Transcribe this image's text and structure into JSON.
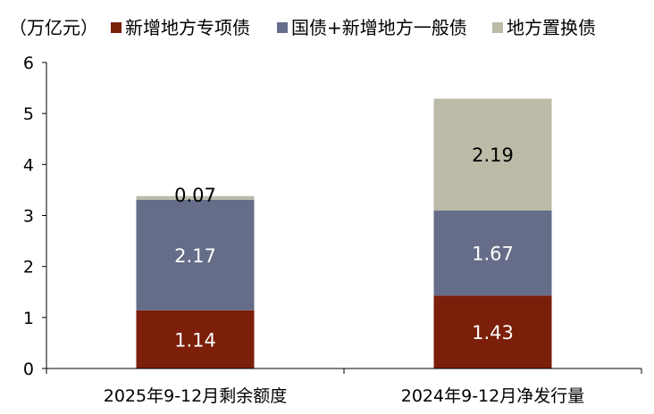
{
  "chart_data": {
    "type": "bar",
    "stacked": true,
    "unit_label": "（万亿元）",
    "categories": [
      "2025年9-12月剩余额度",
      "2024年9-12月净发行量"
    ],
    "series": [
      {
        "name": "新增地方专项债",
        "color": "#7b1e0a",
        "label_color": "#ffffff",
        "values": [
          1.14,
          1.43
        ]
      },
      {
        "name": "国债+新增地方一般债",
        "color": "#656d88",
        "label_color": "#ffffff",
        "values": [
          2.17,
          1.67
        ]
      },
      {
        "name": "地方置换债",
        "color": "#bcbba8",
        "label_color": "#000000",
        "values": [
          0.07,
          2.19
        ]
      }
    ],
    "ylim": [
      0,
      6
    ],
    "yticks": [
      0,
      1,
      2,
      3,
      4,
      5,
      6
    ],
    "grid": false,
    "legend": "top"
  }
}
